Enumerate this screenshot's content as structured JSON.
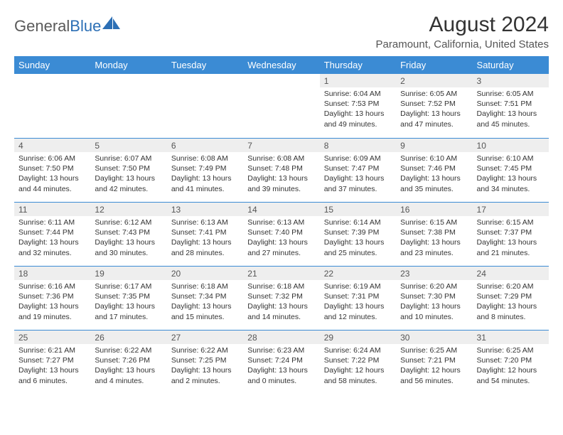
{
  "logo": {
    "text_gray": "General",
    "text_blue": "Blue"
  },
  "title": "August 2024",
  "subtitle": "Paramount, California, United States",
  "colors": {
    "header_bg": "#3b8bd4",
    "header_text": "#ffffff",
    "daynum_bg": "#eeeeee",
    "border": "#3b8bd4",
    "text": "#333333",
    "logo_gray": "#5a5a5a",
    "logo_blue": "#2c6fb5"
  },
  "day_headers": [
    "Sunday",
    "Monday",
    "Tuesday",
    "Wednesday",
    "Thursday",
    "Friday",
    "Saturday"
  ],
  "weeks": [
    [
      {
        "n": "",
        "sr": "",
        "ss": "",
        "dl": ""
      },
      {
        "n": "",
        "sr": "",
        "ss": "",
        "dl": ""
      },
      {
        "n": "",
        "sr": "",
        "ss": "",
        "dl": ""
      },
      {
        "n": "",
        "sr": "",
        "ss": "",
        "dl": ""
      },
      {
        "n": "1",
        "sr": "Sunrise: 6:04 AM",
        "ss": "Sunset: 7:53 PM",
        "dl": "Daylight: 13 hours and 49 minutes."
      },
      {
        "n": "2",
        "sr": "Sunrise: 6:05 AM",
        "ss": "Sunset: 7:52 PM",
        "dl": "Daylight: 13 hours and 47 minutes."
      },
      {
        "n": "3",
        "sr": "Sunrise: 6:05 AM",
        "ss": "Sunset: 7:51 PM",
        "dl": "Daylight: 13 hours and 45 minutes."
      }
    ],
    [
      {
        "n": "4",
        "sr": "Sunrise: 6:06 AM",
        "ss": "Sunset: 7:50 PM",
        "dl": "Daylight: 13 hours and 44 minutes."
      },
      {
        "n": "5",
        "sr": "Sunrise: 6:07 AM",
        "ss": "Sunset: 7:50 PM",
        "dl": "Daylight: 13 hours and 42 minutes."
      },
      {
        "n": "6",
        "sr": "Sunrise: 6:08 AM",
        "ss": "Sunset: 7:49 PM",
        "dl": "Daylight: 13 hours and 41 minutes."
      },
      {
        "n": "7",
        "sr": "Sunrise: 6:08 AM",
        "ss": "Sunset: 7:48 PM",
        "dl": "Daylight: 13 hours and 39 minutes."
      },
      {
        "n": "8",
        "sr": "Sunrise: 6:09 AM",
        "ss": "Sunset: 7:47 PM",
        "dl": "Daylight: 13 hours and 37 minutes."
      },
      {
        "n": "9",
        "sr": "Sunrise: 6:10 AM",
        "ss": "Sunset: 7:46 PM",
        "dl": "Daylight: 13 hours and 35 minutes."
      },
      {
        "n": "10",
        "sr": "Sunrise: 6:10 AM",
        "ss": "Sunset: 7:45 PM",
        "dl": "Daylight: 13 hours and 34 minutes."
      }
    ],
    [
      {
        "n": "11",
        "sr": "Sunrise: 6:11 AM",
        "ss": "Sunset: 7:44 PM",
        "dl": "Daylight: 13 hours and 32 minutes."
      },
      {
        "n": "12",
        "sr": "Sunrise: 6:12 AM",
        "ss": "Sunset: 7:43 PM",
        "dl": "Daylight: 13 hours and 30 minutes."
      },
      {
        "n": "13",
        "sr": "Sunrise: 6:13 AM",
        "ss": "Sunset: 7:41 PM",
        "dl": "Daylight: 13 hours and 28 minutes."
      },
      {
        "n": "14",
        "sr": "Sunrise: 6:13 AM",
        "ss": "Sunset: 7:40 PM",
        "dl": "Daylight: 13 hours and 27 minutes."
      },
      {
        "n": "15",
        "sr": "Sunrise: 6:14 AM",
        "ss": "Sunset: 7:39 PM",
        "dl": "Daylight: 13 hours and 25 minutes."
      },
      {
        "n": "16",
        "sr": "Sunrise: 6:15 AM",
        "ss": "Sunset: 7:38 PM",
        "dl": "Daylight: 13 hours and 23 minutes."
      },
      {
        "n": "17",
        "sr": "Sunrise: 6:15 AM",
        "ss": "Sunset: 7:37 PM",
        "dl": "Daylight: 13 hours and 21 minutes."
      }
    ],
    [
      {
        "n": "18",
        "sr": "Sunrise: 6:16 AM",
        "ss": "Sunset: 7:36 PM",
        "dl": "Daylight: 13 hours and 19 minutes."
      },
      {
        "n": "19",
        "sr": "Sunrise: 6:17 AM",
        "ss": "Sunset: 7:35 PM",
        "dl": "Daylight: 13 hours and 17 minutes."
      },
      {
        "n": "20",
        "sr": "Sunrise: 6:18 AM",
        "ss": "Sunset: 7:34 PM",
        "dl": "Daylight: 13 hours and 15 minutes."
      },
      {
        "n": "21",
        "sr": "Sunrise: 6:18 AM",
        "ss": "Sunset: 7:32 PM",
        "dl": "Daylight: 13 hours and 14 minutes."
      },
      {
        "n": "22",
        "sr": "Sunrise: 6:19 AM",
        "ss": "Sunset: 7:31 PM",
        "dl": "Daylight: 13 hours and 12 minutes."
      },
      {
        "n": "23",
        "sr": "Sunrise: 6:20 AM",
        "ss": "Sunset: 7:30 PM",
        "dl": "Daylight: 13 hours and 10 minutes."
      },
      {
        "n": "24",
        "sr": "Sunrise: 6:20 AM",
        "ss": "Sunset: 7:29 PM",
        "dl": "Daylight: 13 hours and 8 minutes."
      }
    ],
    [
      {
        "n": "25",
        "sr": "Sunrise: 6:21 AM",
        "ss": "Sunset: 7:27 PM",
        "dl": "Daylight: 13 hours and 6 minutes."
      },
      {
        "n": "26",
        "sr": "Sunrise: 6:22 AM",
        "ss": "Sunset: 7:26 PM",
        "dl": "Daylight: 13 hours and 4 minutes."
      },
      {
        "n": "27",
        "sr": "Sunrise: 6:22 AM",
        "ss": "Sunset: 7:25 PM",
        "dl": "Daylight: 13 hours and 2 minutes."
      },
      {
        "n": "28",
        "sr": "Sunrise: 6:23 AM",
        "ss": "Sunset: 7:24 PM",
        "dl": "Daylight: 13 hours and 0 minutes."
      },
      {
        "n": "29",
        "sr": "Sunrise: 6:24 AM",
        "ss": "Sunset: 7:22 PM",
        "dl": "Daylight: 12 hours and 58 minutes."
      },
      {
        "n": "30",
        "sr": "Sunrise: 6:25 AM",
        "ss": "Sunset: 7:21 PM",
        "dl": "Daylight: 12 hours and 56 minutes."
      },
      {
        "n": "31",
        "sr": "Sunrise: 6:25 AM",
        "ss": "Sunset: 7:20 PM",
        "dl": "Daylight: 12 hours and 54 minutes."
      }
    ]
  ]
}
